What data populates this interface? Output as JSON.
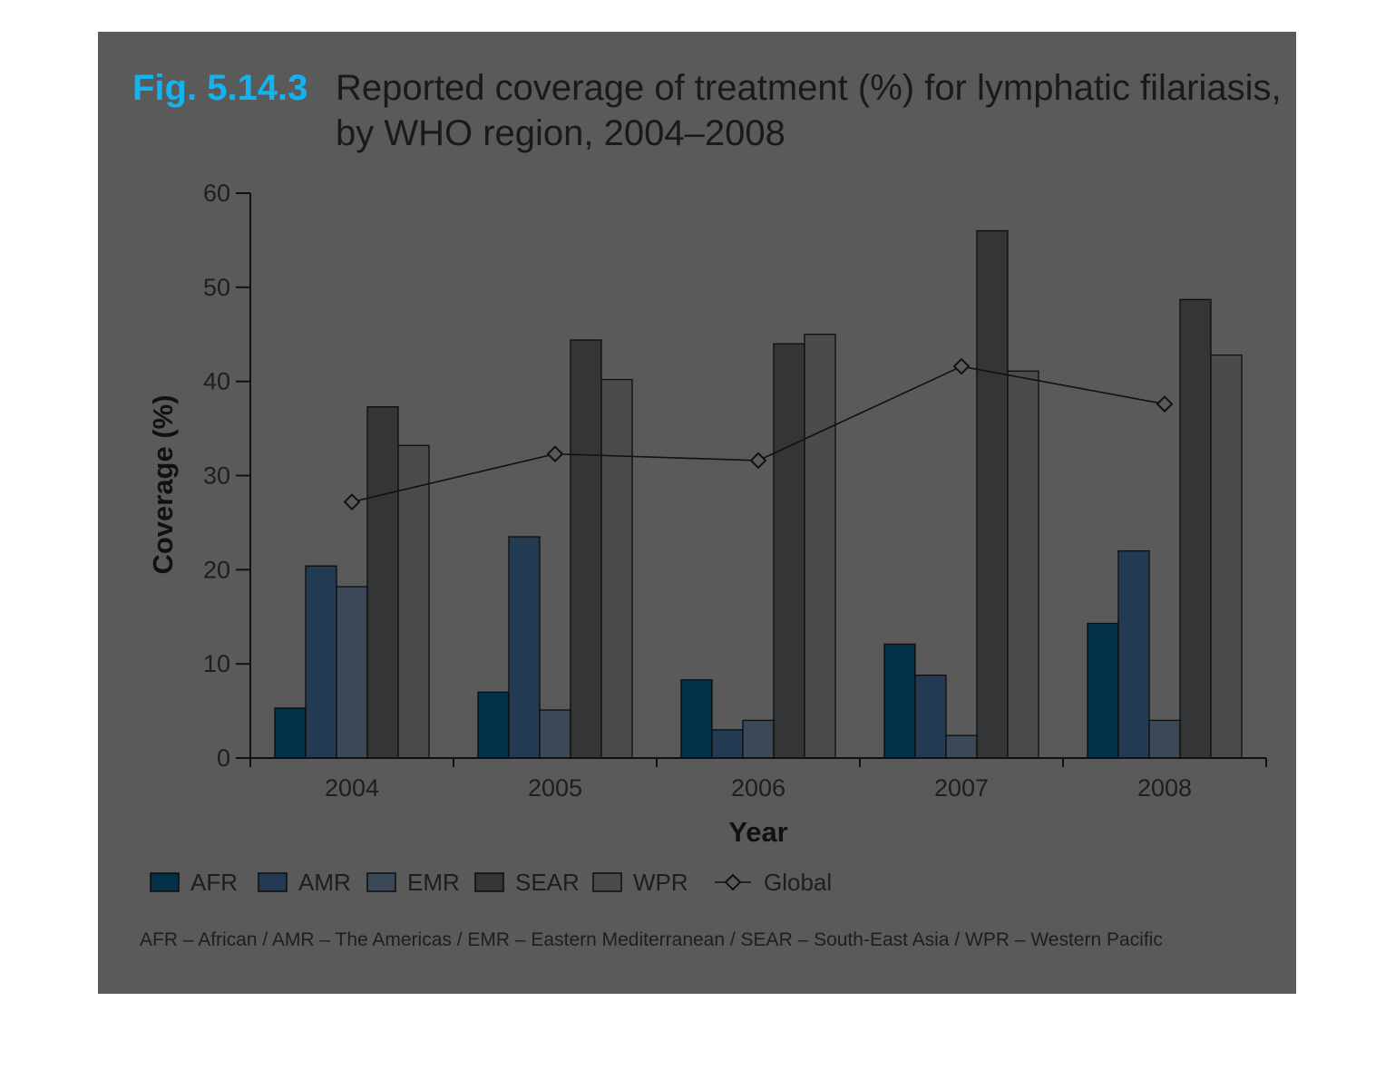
{
  "title": {
    "fig_label": "Fig. 5.14.3",
    "line1": "Reported coverage of treatment (%) for lymphatic filariasis,",
    "line2": "by WHO region, 2004–2008"
  },
  "colors": {
    "background": "#5a5a5a",
    "AFR": "#03314a",
    "AMR": "#233a53",
    "EMR": "#3b4858",
    "SEAR": "#333536",
    "WPR": "#4a4b4b",
    "global_line": "#111111"
  },
  "chart_data": {
    "type": "bar",
    "categories": [
      "2004",
      "2005",
      "2006",
      "2007",
      "2008"
    ],
    "series": [
      {
        "name": "AFR",
        "values": [
          5.3,
          7.0,
          8.3,
          12.1,
          14.3
        ]
      },
      {
        "name": "AMR",
        "values": [
          20.4,
          23.5,
          3.0,
          8.8,
          22.0
        ]
      },
      {
        "name": "EMR",
        "values": [
          18.2,
          5.1,
          4.0,
          2.4,
          4.0
        ]
      },
      {
        "name": "SEAR",
        "values": [
          37.3,
          44.4,
          44.0,
          56.0,
          48.7
        ]
      },
      {
        "name": "WPR",
        "values": [
          33.2,
          40.2,
          45.0,
          41.1,
          42.8
        ]
      }
    ],
    "line_series": {
      "name": "Global",
      "values": [
        27.2,
        32.3,
        31.6,
        41.6,
        37.6
      ]
    },
    "xlabel": "Year",
    "ylabel": "Coverage (%)",
    "ylim": [
      0,
      60
    ],
    "yticks": [
      "0",
      "10",
      "20",
      "30",
      "40",
      "50",
      "60"
    ],
    "grid": false,
    "legend_position": "bottom"
  },
  "footnote": "AFR – African / AMR – The Americas / EMR – Eastern Mediterranean / SEAR – South-East Asia / WPR – Western Pacific"
}
